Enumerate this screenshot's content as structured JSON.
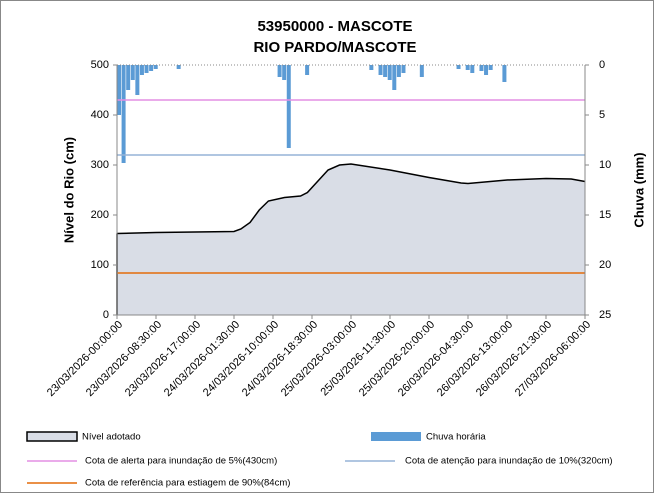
{
  "chart_data": {
    "type": "area",
    "title": [
      "53950000 - MASCOTE",
      "RIO PARDO/MASCOTE"
    ],
    "y_label": "Nível do Rio (cm)",
    "y2_label": "Chuva (mm)",
    "xlim": [
      "23/03/2026-00:00:00",
      "27/03/2026-06:00:00"
    ],
    "xticks": [
      "23/03/2026-00:00:00",
      "23/03/2026-08:30:00",
      "23/03/2026-17:00:00",
      "24/03/2026-01:30:00",
      "24/03/2026-10:00:00",
      "24/03/2026-18:30:00",
      "25/03/2026-03:00:00",
      "25/03/2026-11:30:00",
      "25/03/2026-20:00:00",
      "26/03/2026-04:30:00",
      "26/03/2026-13:00:00",
      "26/03/2026-21:30:00",
      "27/03/2026-06:00:00"
    ],
    "ylim": [
      0,
      500
    ],
    "yticks": [
      0,
      100,
      200,
      300,
      400,
      500
    ],
    "y2lim": [
      25,
      0
    ],
    "y2ticks": [
      0,
      5,
      10,
      15,
      20,
      25
    ],
    "series": [
      {
        "name": "Nível adotado",
        "type": "area",
        "color": "#d9dde6",
        "x": [
          "23/03/2026-00:00:00",
          "23/03/2026-08:30:00",
          "23/03/2026-17:00:00",
          "24/03/2026-01:30:00",
          "24/03/2026-03:00:00",
          "24/03/2026-05:00:00",
          "24/03/2026-07:00:00",
          "24/03/2026-09:00:00",
          "24/03/2026-12:30:00",
          "24/03/2026-16:00:00",
          "24/03/2026-17:30:00",
          "24/03/2026-20:00:00",
          "24/03/2026-22:00:00",
          "25/03/2026-00:30:00",
          "25/03/2026-03:00:00",
          "25/03/2026-11:30:00",
          "25/03/2026-20:00:00",
          "26/03/2026-03:00:00",
          "26/03/2026-04:30:00",
          "26/03/2026-13:00:00",
          "26/03/2026-21:30:00",
          "27/03/2026-03:00:00",
          "27/03/2026-06:00:00"
        ],
        "values": [
          163,
          165,
          166,
          167,
          172,
          185,
          210,
          228,
          235,
          238,
          245,
          270,
          290,
          300,
          302,
          290,
          275,
          264,
          263,
          270,
          273,
          272,
          267
        ]
      },
      {
        "name": "Chuva horária",
        "type": "bar",
        "axis": "y2",
        "color": "#5b9bd5",
        "x": [
          "23/03/2026-00:00:00",
          "23/03/2026-01:00:00",
          "23/03/2026-02:00:00",
          "23/03/2026-03:00:00",
          "23/03/2026-04:00:00",
          "23/03/2026-05:00:00",
          "23/03/2026-06:00:00",
          "23/03/2026-07:00:00",
          "23/03/2026-08:00:00",
          "23/03/2026-13:00:00",
          "24/03/2026-11:00:00",
          "24/03/2026-12:00:00",
          "24/03/2026-13:00:00",
          "24/03/2026-17:00:00",
          "25/03/2026-07:00:00",
          "25/03/2026-09:00:00",
          "25/03/2026-10:00:00",
          "25/03/2026-11:00:00",
          "25/03/2026-12:00:00",
          "25/03/2026-13:00:00",
          "25/03/2026-14:00:00",
          "25/03/2026-18:00:00",
          "26/03/2026-02:00:00",
          "26/03/2026-04:00:00",
          "26/03/2026-05:00:00",
          "26/03/2026-07:00:00",
          "26/03/2026-08:00:00",
          "26/03/2026-09:00:00",
          "26/03/2026-12:00:00"
        ],
        "values": [
          5,
          9.8,
          2.5,
          1.5,
          3,
          1,
          0.8,
          0.6,
          0.4,
          0.4,
          1.2,
          1.5,
          8.3,
          1,
          0.5,
          1,
          1.2,
          1.5,
          2.5,
          1.2,
          0.8,
          1.2,
          0.4,
          0.5,
          0.8,
          0.6,
          1,
          0.5,
          1.7
        ]
      }
    ],
    "reference_lines": [
      {
        "name": "Cota de alerta para inundação de 5%(430cm)",
        "value": 430,
        "color": "#e48fe4"
      },
      {
        "name": "Cota de atenção para inundação de 10%(320cm)",
        "value": 320,
        "color": "#95b3d7"
      },
      {
        "name": "Cota de referência para estiagem de 90%(84cm)",
        "value": 84,
        "color": "#e46c0a"
      }
    ]
  }
}
